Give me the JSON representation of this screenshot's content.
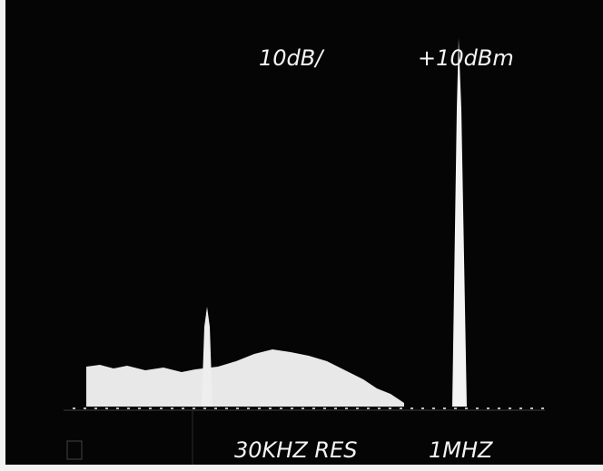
{
  "labels": {
    "scale": "10dB/",
    "reference": "+10dBm",
    "resolution": "30KHZ RES",
    "span": "1MHZ"
  }
}
